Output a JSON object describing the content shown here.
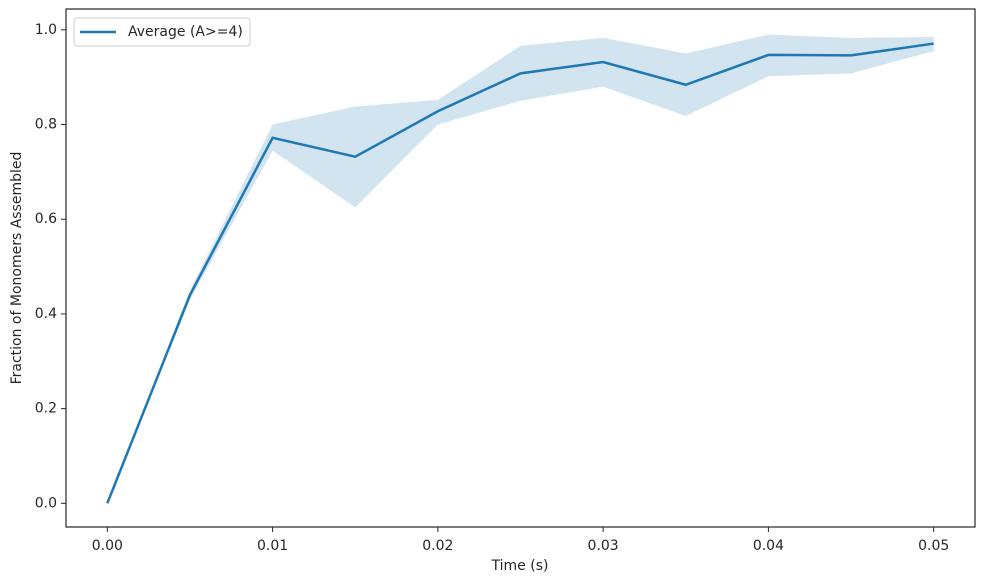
{
  "chart_data": {
    "type": "line",
    "xlabel": "Time (s)",
    "ylabel": "Fraction of Monomers Assembled",
    "x": [
      0,
      0.005,
      0.01,
      0.015,
      0.02,
      0.025,
      0.03,
      0.035,
      0.04,
      0.045,
      0.05
    ],
    "series": [
      {
        "name": "Average (A>=4)",
        "color": "#1f77b4",
        "values": [
          0,
          0.44,
          0.772,
          0.732,
          0.828,
          0.908,
          0.932,
          0.884,
          0.947,
          0.946,
          0.971
        ],
        "lower": [
          0,
          0.43,
          0.745,
          0.625,
          0.8,
          0.85,
          0.88,
          0.818,
          0.902,
          0.908,
          0.955
        ],
        "upper": [
          0,
          0.45,
          0.8,
          0.838,
          0.852,
          0.966,
          0.983,
          0.95,
          0.99,
          0.983,
          0.985
        ]
      }
    ],
    "xlim": [
      -0.0025,
      0.0525
    ],
    "ylim": [
      -0.05,
      1.044
    ],
    "xticks": [
      {
        "value": 0,
        "label": "0.00"
      },
      0.01,
      0.02,
      0.03,
      0.04,
      0.05
    ],
    "yticks": [
      {
        "value": 0,
        "label": "0.0"
      },
      0.2,
      0.4,
      0.6,
      0.8,
      {
        "value": 1,
        "label": "1.0"
      }
    ],
    "legend": "upper left"
  }
}
